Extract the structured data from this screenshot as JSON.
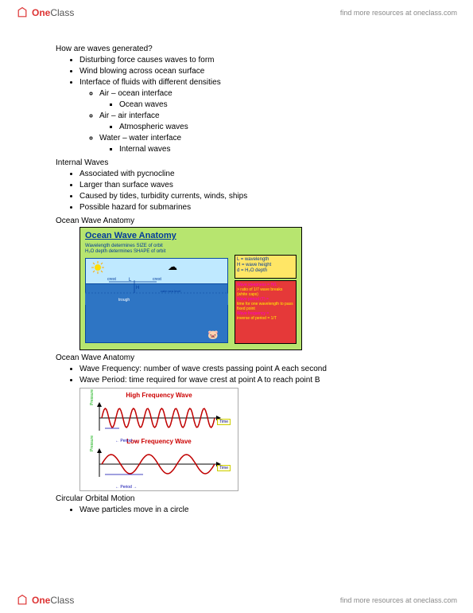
{
  "header": {
    "logo_one": "One",
    "logo_class": "Class",
    "link_text": "find more resources at oneclass.com"
  },
  "footer": {
    "logo_one": "One",
    "logo_class": "Class",
    "link_text": "find more resources at oneclass.com"
  },
  "section1": {
    "title": "How are waves generated?",
    "items": [
      "Disturbing force causes waves to form",
      "Wind blowing across ocean surface",
      "Interface of fluids with different densities"
    ],
    "sub": [
      {
        "label": "Air – ocean interface",
        "child": "Ocean waves"
      },
      {
        "label": "Air – air interface",
        "child": "Atmospheric waves"
      },
      {
        "label": "Water – water interface",
        "child": "Internal waves"
      }
    ]
  },
  "section2": {
    "title": "Internal Waves",
    "items": [
      "Associated with pycnocline",
      "Larger than surface waves",
      "Caused by tides, turbidity currents, winds, ships",
      "Possible hazard for submarines"
    ]
  },
  "section3": {
    "title": "Ocean Wave Anatomy"
  },
  "diagram1": {
    "title": "Ocean Wave Anatomy",
    "caption1": "Wavelength determines SIZE of orbit",
    "caption2": "H₂O depth determines SHAPE of orbit",
    "yellow": {
      "l": "L = wavelength",
      "h": "H = wave height",
      "d": "d = H₂O depth"
    },
    "red": {
      "steep": "Wave steepness = H/L",
      "steep2": "> ratio of 1/7 wave breaks (white caps)",
      "period": "Wave period (T) =",
      "period2": "time for one wavelength to pass fixed point",
      "freq": "Wave frequency =",
      "freq2": "inverse of period = 1/T"
    },
    "labels": {
      "crest": "crest",
      "trough": "trough",
      "sealevel": "calm sea level",
      "L": "L",
      "H": "H",
      "d": "d"
    },
    "colors": {
      "bg": "#b7e56f",
      "sky": "#bfe9ff",
      "sea": "#2e75c4",
      "yellow": "#ffe666",
      "red": "#e53939",
      "text": "#003a9b"
    }
  },
  "section4": {
    "title": "Ocean Wave Anatomy",
    "items": [
      "Wave Frequency: number of wave crests passing point A each second",
      "Wave Period:   time required for wave crest at point A to reach point B"
    ]
  },
  "diagram2": {
    "title_high": "High Frequency Wave",
    "title_low": "Low Frequency Wave",
    "y_axis": "Pressure",
    "x_axis": "Time",
    "period": "← Period →",
    "high_cycles": 8,
    "low_cycles": 3,
    "wave_color": "#c00000",
    "axis_color": "#000"
  },
  "section5": {
    "title": "Circular Orbital Motion",
    "items": [
      "Wave particles move in a circle"
    ]
  }
}
